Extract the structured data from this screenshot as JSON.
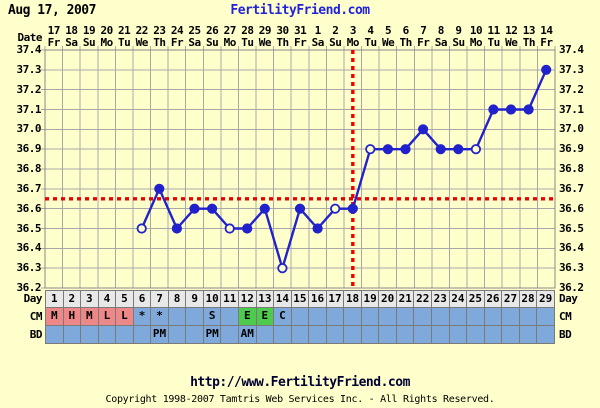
{
  "page": {
    "title_date": "Aug 17, 2007",
    "site_title": "FertilityFriend.com",
    "colors": {
      "background": "#ffffcc",
      "site_title_blue": "#2222dd"
    }
  },
  "chart_data": {
    "type": "line",
    "x_axis_label": "Date",
    "dates": [
      "17",
      "18",
      "19",
      "20",
      "21",
      "22",
      "23",
      "24",
      "25",
      "26",
      "27",
      "28",
      "29",
      "30",
      "31",
      "1",
      "2",
      "3",
      "4",
      "5",
      "6",
      "7",
      "8",
      "9",
      "10",
      "11",
      "12",
      "13",
      "14"
    ],
    "weekdays": [
      "Fr",
      "Sa",
      "Su",
      "Mo",
      "Tu",
      "We",
      "Th",
      "Fr",
      "Sa",
      "Su",
      "Mo",
      "Tu",
      "We",
      "Th",
      "Fr",
      "Sa",
      "Su",
      "Mo",
      "Tu",
      "We",
      "Th",
      "Fr",
      "Sa",
      "Su",
      "Mo",
      "Tu",
      "We",
      "Th",
      "Fr"
    ],
    "cycle_days": [
      "1",
      "2",
      "3",
      "4",
      "5",
      "6",
      "7",
      "8",
      "9",
      "10",
      "11",
      "12",
      "13",
      "14",
      "15",
      "16",
      "17",
      "18",
      "19",
      "20",
      "21",
      "22",
      "23",
      "24",
      "25",
      "26",
      "27",
      "28",
      "29"
    ],
    "y_ticks": [
      "37.4",
      "37.3",
      "37.2",
      "37.1",
      "37.0",
      "36.9",
      "36.8",
      "36.7",
      "36.6",
      "36.5",
      "36.4",
      "36.3",
      "36.2"
    ],
    "ylim": [
      36.2,
      37.4
    ],
    "grid": true,
    "series": [
      {
        "name": "basal-body-temperature",
        "points": [
          {
            "day": 6,
            "temp": 36.5,
            "open": true
          },
          {
            "day": 7,
            "temp": 36.7
          },
          {
            "day": 8,
            "temp": 36.5
          },
          {
            "day": 9,
            "temp": 36.6
          },
          {
            "day": 10,
            "temp": 36.6
          },
          {
            "day": 11,
            "temp": 36.5,
            "open": true
          },
          {
            "day": 12,
            "temp": 36.5
          },
          {
            "day": 13,
            "temp": 36.6
          },
          {
            "day": 14,
            "temp": 36.3,
            "open": true
          },
          {
            "day": 15,
            "temp": 36.6
          },
          {
            "day": 16,
            "temp": 36.5
          },
          {
            "day": 17,
            "temp": 36.6,
            "open": true
          },
          {
            "day": 18,
            "temp": 36.6
          },
          {
            "day": 19,
            "temp": 36.9,
            "open": true
          },
          {
            "day": 20,
            "temp": 36.9
          },
          {
            "day": 21,
            "temp": 36.9
          },
          {
            "day": 22,
            "temp": 37.0
          },
          {
            "day": 23,
            "temp": 36.9
          },
          {
            "day": 24,
            "temp": 36.9
          },
          {
            "day": 25,
            "temp": 36.9,
            "open": true
          },
          {
            "day": 26,
            "temp": 37.1
          },
          {
            "day": 27,
            "temp": 37.1
          },
          {
            "day": 28,
            "temp": 37.1
          },
          {
            "day": 29,
            "temp": 37.3
          }
        ]
      }
    ],
    "coverline_temp": 36.65,
    "ovulation_line_day": 18,
    "colors": {
      "line": "#2222cc",
      "marker_open_fill": "#ffffcc",
      "red_lines": "#ee0000",
      "grid": "#a8a8a8",
      "border": "#888888"
    }
  },
  "table": {
    "day_label": "Day",
    "cm_label": "CM",
    "bd_label": "BD",
    "cm_entries": [
      {
        "day": 1,
        "text": "M",
        "bg": "menses"
      },
      {
        "day": 2,
        "text": "H",
        "bg": "menses"
      },
      {
        "day": 3,
        "text": "M",
        "bg": "menses"
      },
      {
        "day": 4,
        "text": "L",
        "bg": "menses"
      },
      {
        "day": 5,
        "text": "L",
        "bg": "menses"
      },
      {
        "day": 6,
        "text": "*"
      },
      {
        "day": 7,
        "text": "*"
      },
      {
        "day": 10,
        "text": "S"
      },
      {
        "day": 12,
        "text": "E",
        "bg": "egg_white"
      },
      {
        "day": 13,
        "text": "E",
        "bg": "egg_white"
      },
      {
        "day": 14,
        "text": "C"
      }
    ],
    "bd_entries": [
      {
        "day": 7,
        "text": "PM"
      },
      {
        "day": 10,
        "text": "PM"
      },
      {
        "day": 12,
        "text": "AM"
      }
    ],
    "colors": {
      "day_bg": "#e8e8e8",
      "row_bg": "#7fa9db",
      "menses": "#ee8888",
      "egg_white": "#4ecb4e"
    }
  },
  "footer": {
    "url": "http://www.FertilityFriend.com",
    "copyright": "Copyright 1998-2007 Tamtris Web Services Inc. - All Rights Reserved."
  }
}
